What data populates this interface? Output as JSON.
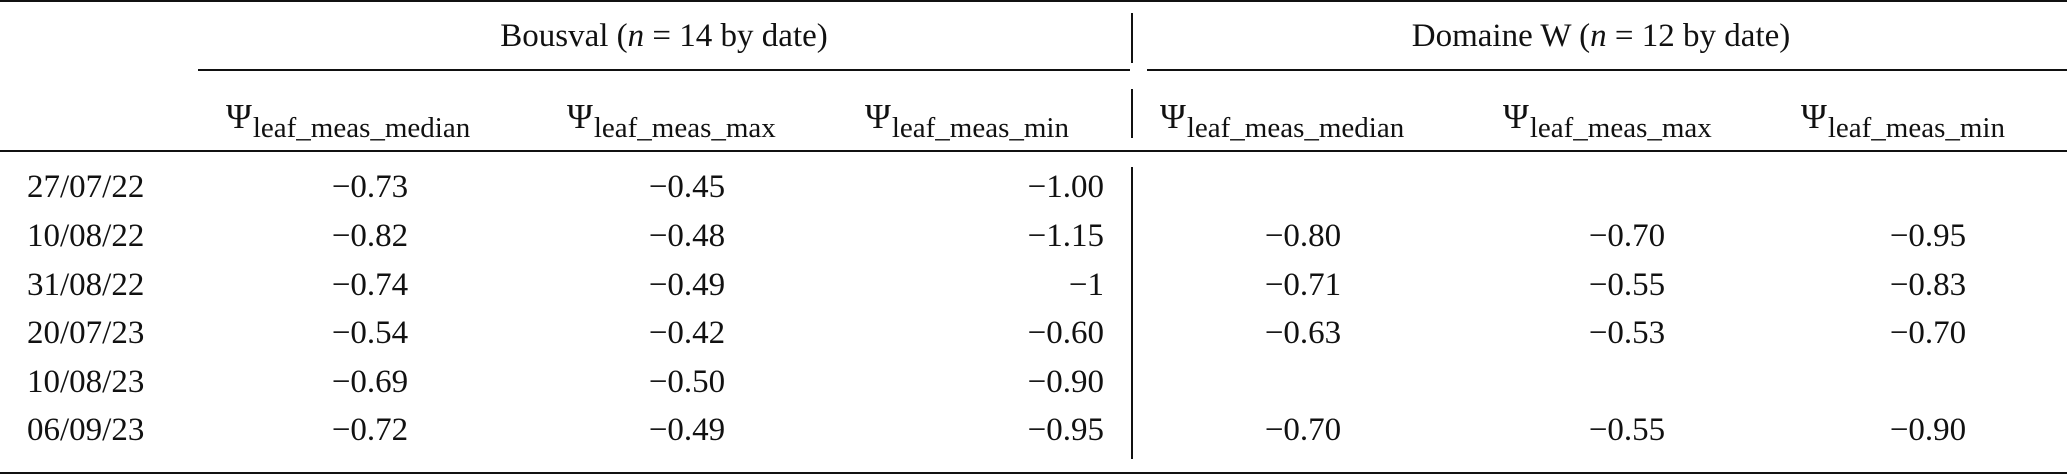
{
  "table": {
    "groups": [
      {
        "name": "Bousval",
        "n_note_prefix": "(",
        "n_var": "n",
        "n_note_suffix": " = 14 by date)"
      },
      {
        "name": "Domaine W",
        "n_note_prefix": "(",
        "n_var": "n",
        "n_note_suffix": " = 12 by date)"
      }
    ],
    "columns": [
      {
        "symbol": "Ψ",
        "subscript": "leaf_meas_median"
      },
      {
        "symbol": "Ψ",
        "subscript": "leaf_meas_max"
      },
      {
        "symbol": "Ψ",
        "subscript": "leaf_meas_min"
      },
      {
        "symbol": "Ψ",
        "subscript": "leaf_meas_median"
      },
      {
        "symbol": "Ψ",
        "subscript": "leaf_meas_max"
      },
      {
        "symbol": "Ψ",
        "subscript": "leaf_meas_min"
      }
    ],
    "rows": [
      {
        "date": "27/07/22",
        "values": [
          "−0.73",
          "−0.45",
          "−1.00",
          "",
          "",
          ""
        ]
      },
      {
        "date": "10/08/22",
        "values": [
          "−0.82",
          "−0.48",
          "−1.15",
          "−0.80",
          "−0.70",
          "−0.95"
        ]
      },
      {
        "date": "31/08/22",
        "values": [
          "−0.74",
          "−0.49",
          "−1",
          "−0.71",
          "−0.55",
          "−0.83"
        ]
      },
      {
        "date": "20/07/23",
        "values": [
          "−0.54",
          "−0.42",
          "−0.60",
          "−0.63",
          "−0.53",
          "−0.70"
        ]
      },
      {
        "date": "10/08/23",
        "values": [
          "−0.69",
          "−0.50",
          "−0.90",
          "",
          "",
          ""
        ]
      },
      {
        "date": "06/09/23",
        "values": [
          "−0.72",
          "−0.49",
          "−0.95",
          "−0.70",
          "−0.55",
          "−0.90"
        ]
      }
    ]
  }
}
